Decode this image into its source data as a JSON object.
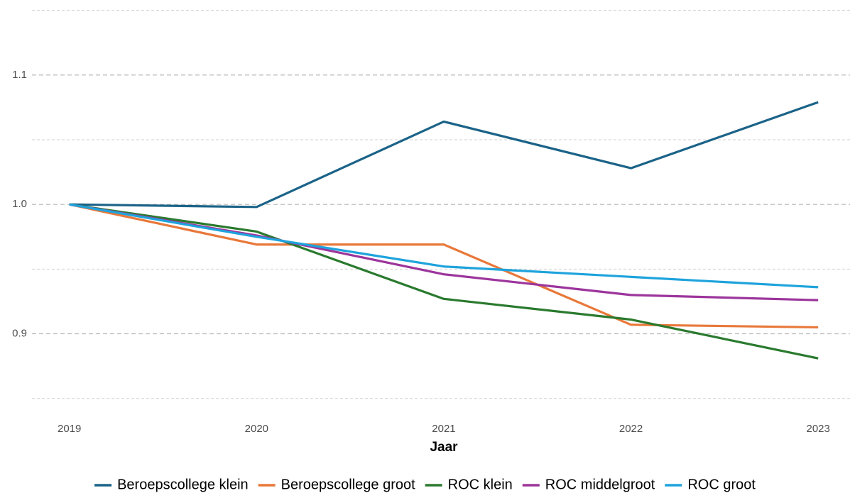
{
  "chart_data": {
    "type": "line",
    "x_label": "Jaar",
    "x": [
      2019,
      2020,
      2021,
      2022,
      2023
    ],
    "xlim": [
      2018.8,
      2023.17
    ],
    "xticks": [
      2019,
      2020,
      2021,
      2022,
      2023
    ],
    "ylim": [
      0.84,
      1.158
    ],
    "yticks": [
      {
        "value": 0.9,
        "label": "0.9"
      },
      {
        "value": 1,
        "label": "1.0"
      },
      {
        "value": 1.1,
        "label": "1.1"
      }
    ],
    "y_minor_gridlines": [
      0.85,
      0.95,
      1.05,
      1.15
    ],
    "grid": true,
    "legend_position": "bottom",
    "series": [
      {
        "name": "Beroepscollege klein",
        "color": "#1b6388",
        "values": [
          1.0,
          0.998,
          1.064,
          1.028,
          1.079
        ]
      },
      {
        "name": "Beroepscollege groot",
        "color": "#e8783a",
        "values": [
          1.0,
          0.969,
          0.969,
          0.907,
          0.905
        ]
      },
      {
        "name": "ROC klein",
        "color": "#2a7a2e",
        "values": [
          1.0,
          0.979,
          0.927,
          0.911,
          0.881
        ]
      },
      {
        "name": "ROC middelgroot",
        "color": "#9c359c",
        "values": [
          1.0,
          0.976,
          0.946,
          0.93,
          0.926
        ]
      },
      {
        "name": "ROC groot",
        "color": "#1ea3dc",
        "values": [
          1.0,
          0.975,
          0.952,
          0.944,
          0.936
        ]
      }
    ]
  }
}
